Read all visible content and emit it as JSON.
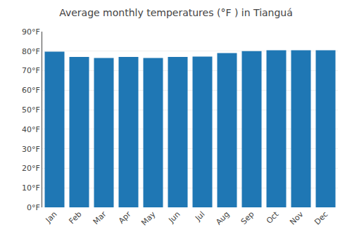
{
  "chart_data": {
    "type": "bar",
    "title": "Average monthly temperatures (°F ) in Tianguá",
    "categories": [
      "Jan",
      "Feb",
      "Mar",
      "Apr",
      "May",
      "Jun",
      "Jul",
      "Aug",
      "Sep",
      "Oct",
      "Nov",
      "Dec"
    ],
    "values": [
      79.7,
      77.0,
      76.5,
      77.0,
      76.5,
      77.0,
      77.2,
      79.0,
      80.0,
      80.5,
      80.5,
      80.5
    ],
    "ylim": [
      0,
      90
    ],
    "yticks": [
      {
        "value": 0,
        "label": "0°F"
      },
      {
        "value": 10,
        "label": "10°F"
      },
      {
        "value": 20,
        "label": "20°F"
      },
      {
        "value": 30,
        "label": "30°F"
      },
      {
        "value": 40,
        "label": "40°F"
      },
      {
        "value": 50,
        "label": "50°F"
      },
      {
        "value": 60,
        "label": "60°F"
      },
      {
        "value": 70,
        "label": "70°F"
      },
      {
        "value": 80,
        "label": "80°F"
      },
      {
        "value": 90,
        "label": "90°F"
      }
    ],
    "grid": true
  }
}
